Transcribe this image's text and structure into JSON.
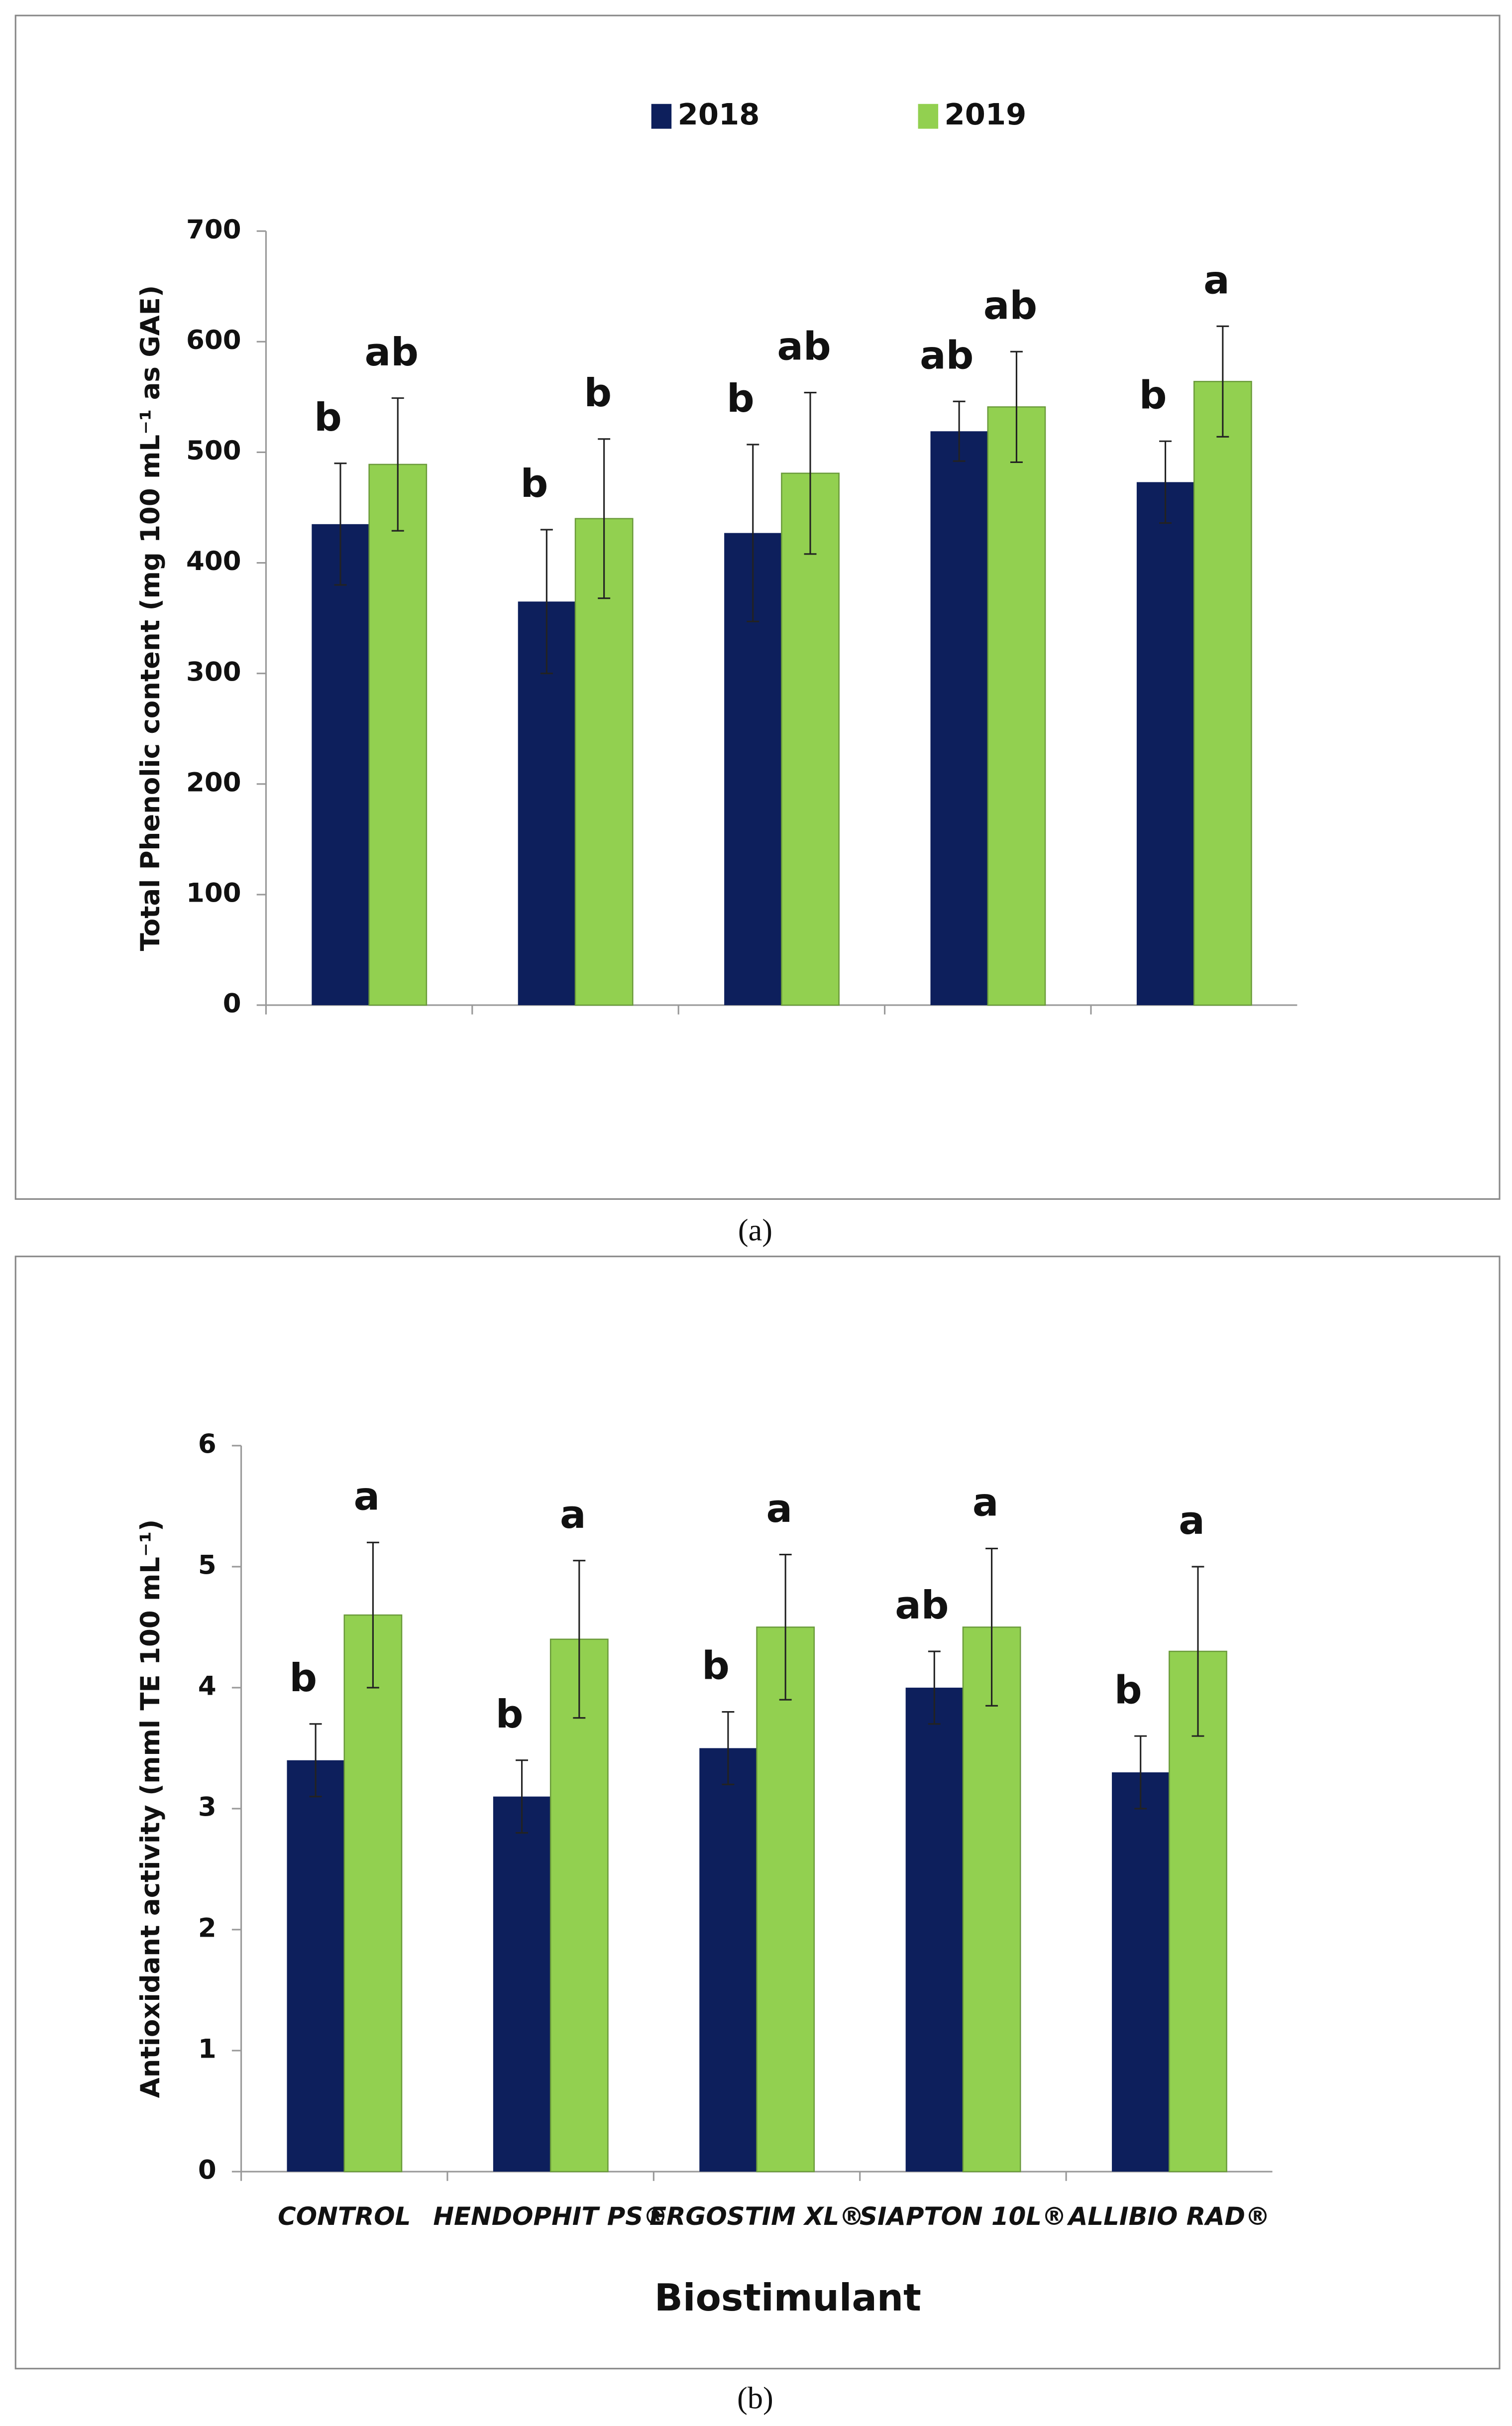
{
  "chart_data": [
    {
      "type": "bar",
      "caption": "(a)",
      "y_label": "Total Phenolic content (mg  100 mL⁻¹ as GAE)",
      "categories": [
        null,
        null,
        null,
        null,
        null
      ],
      "series": [
        {
          "name": "2018",
          "color": "#0d1f5c",
          "values": [
            435,
            365,
            427,
            519,
            473
          ],
          "errors": [
            55,
            65,
            80,
            27,
            37
          ],
          "letters": [
            "b",
            "b",
            "b",
            "ab",
            "b"
          ]
        },
        {
          "name": "2019",
          "color": "#92d050",
          "values": [
            489,
            440,
            481,
            541,
            564
          ],
          "errors": [
            60,
            72,
            73,
            50,
            50
          ],
          "letters": [
            "ab",
            "b",
            "ab",
            "ab",
            "a"
          ]
        }
      ],
      "ylim": [
        0,
        700
      ],
      "yticks": [
        0,
        100,
        200,
        300,
        400,
        500,
        600,
        700
      ],
      "legend": "top"
    },
    {
      "type": "bar",
      "caption": "(b)",
      "y_label": "Antioxidant activity (mml TE 100  mL⁻¹)",
      "x_label": "Biostimulant",
      "categories": [
        "CONTROL",
        "HENDOPHIT PS®",
        "ERGOSTIM XL®",
        "SIAPTON 10L®",
        "ALLIBIO RAD®"
      ],
      "series": [
        {
          "color": "#0d1f5c",
          "values": [
            3.4,
            3.1,
            3.5,
            4.0,
            3.3
          ],
          "errors": [
            0.3,
            0.3,
            0.3,
            0.3,
            0.3
          ],
          "letters": [
            "b",
            "b",
            "b",
            "ab",
            "b"
          ]
        },
        {
          "color": "#92d050",
          "values": [
            4.6,
            4.4,
            4.5,
            4.5,
            4.3
          ],
          "errors": [
            0.6,
            0.65,
            0.6,
            0.65,
            0.7
          ],
          "letters": [
            "a",
            "a",
            "a",
            "a",
            "a"
          ]
        }
      ],
      "ylim": [
        0,
        6
      ],
      "yticks": [
        0,
        1,
        2,
        3,
        4,
        5,
        6
      ]
    }
  ]
}
